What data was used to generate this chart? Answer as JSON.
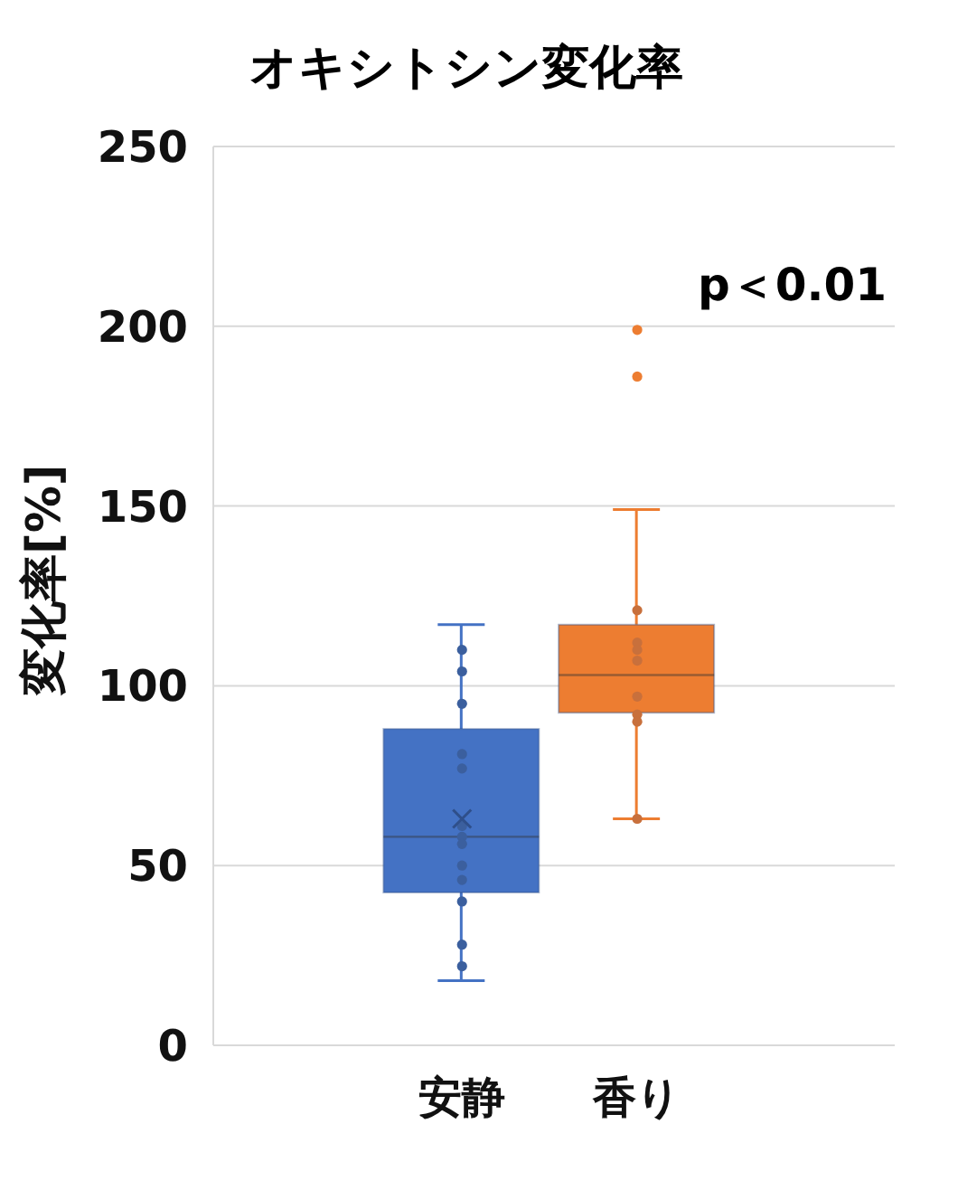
{
  "chart_data": {
    "type": "box",
    "title": "オキシトシン変化率",
    "ylabel": "変化率[%]",
    "categories": [
      "安静",
      "香り"
    ],
    "boxes": [
      {
        "low": 18,
        "q1": 42.5,
        "median": 58,
        "q3": 88,
        "high": 117,
        "mean": 63
      },
      {
        "low": 63,
        "q1": 92.5,
        "median": 103,
        "q3": 117,
        "high": 149,
        "outliers": [
          186,
          199
        ]
      }
    ],
    "colors": [
      "#4472c4",
      "#ed7d31"
    ],
    "series": [
      {
        "type": "scatter",
        "color": "#3b5f9e",
        "x": [
          "安静",
          "安静",
          "安静",
          "安静",
          "安静",
          "安静",
          "安静",
          "安静",
          "安静",
          "安静",
          "安静",
          "安静",
          "安静"
        ],
        "values": [
          110,
          104,
          95,
          81,
          77,
          61,
          58,
          56,
          50,
          46,
          40,
          28,
          22
        ]
      },
      {
        "type": "scatter",
        "color": "#c8703c",
        "x": [
          "香り",
          "香り",
          "香り",
          "香り",
          "香り",
          "香り",
          "香り",
          "香り"
        ],
        "values": [
          121,
          112,
          110,
          107,
          97,
          92,
          90,
          63
        ]
      }
    ],
    "ylim": [
      0,
      250
    ],
    "yticks": [
      0,
      50,
      100,
      150,
      200,
      250
    ],
    "grid": "y",
    "marker": "circle",
    "annotations": [
      "p＜0.01"
    ]
  }
}
